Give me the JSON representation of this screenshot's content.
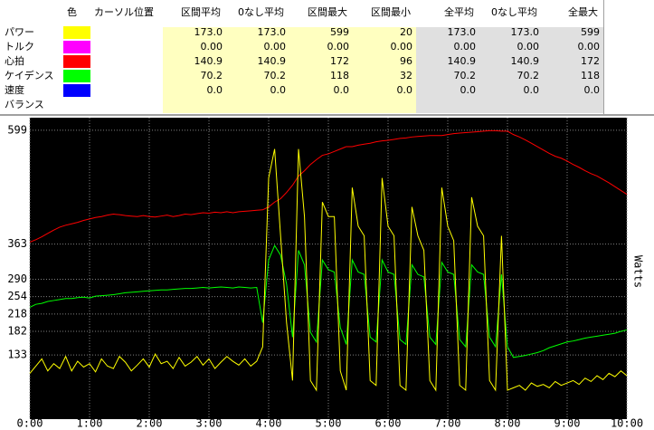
{
  "table": {
    "header": [
      "色",
      "カーソル位置",
      "区間平均",
      "0なし平均",
      "区間最大",
      "区間最小",
      "全平均",
      "0なし平均",
      "全最大"
    ],
    "rows": [
      {
        "label": "パワー",
        "color": "#ffff00",
        "cells": [
          "173.0",
          "173.0",
          "599",
          "20",
          "173.0",
          "173.0",
          "599"
        ]
      },
      {
        "label": "トルク",
        "color": "#ff00ff",
        "cells": [
          "0.00",
          "0.00",
          "0.00",
          "0.00",
          "0.00",
          "0.00",
          "0.00"
        ]
      },
      {
        "label": "心拍",
        "color": "#ff0000",
        "cells": [
          "140.9",
          "140.9",
          "172",
          "96",
          "140.9",
          "140.9",
          "172"
        ]
      },
      {
        "label": "ケイデンス",
        "color": "#00ff00",
        "cells": [
          "70.2",
          "70.2",
          "118",
          "32",
          "70.2",
          "70.2",
          "118"
        ]
      },
      {
        "label": "速度",
        "color": "#0000ff",
        "cells": [
          "0.0",
          "0.0",
          "0.0",
          "0.0",
          "0.0",
          "0.0",
          "0.0"
        ]
      },
      {
        "label": "バランス"
      }
    ]
  },
  "chart_data": {
    "type": "line",
    "ylabel": "Watts",
    "xlim": [
      0,
      10
    ],
    "ylim": [
      0,
      625
    ],
    "grid": true,
    "xticks": [
      {
        "value": 0,
        "label": "0:00"
      },
      {
        "value": 1,
        "label": "1:00"
      },
      {
        "value": 2,
        "label": "2:00"
      },
      {
        "value": 3,
        "label": "3:00"
      },
      {
        "value": 4,
        "label": "4:00"
      },
      {
        "value": 5,
        "label": "5:00"
      },
      {
        "value": 6,
        "label": "6:00"
      },
      {
        "value": 7,
        "label": "7:00"
      },
      {
        "value": 8,
        "label": "8:00"
      },
      {
        "value": 9,
        "label": "9:00"
      },
      {
        "value": 10,
        "label": "10:00"
      }
    ],
    "yticks": [
      133,
      182,
      218,
      254,
      290,
      363,
      599
    ],
    "x": [
      0,
      0.1,
      0.2,
      0.3,
      0.4,
      0.5,
      0.6,
      0.7,
      0.8,
      0.9,
      1,
      1.1,
      1.2,
      1.3,
      1.4,
      1.5,
      1.6,
      1.7,
      1.8,
      1.9,
      2,
      2.1,
      2.2,
      2.3,
      2.4,
      2.5,
      2.6,
      2.7,
      2.8,
      2.9,
      3,
      3.1,
      3.2,
      3.3,
      3.4,
      3.5,
      3.6,
      3.7,
      3.8,
      3.9,
      4,
      4.1,
      4.2,
      4.3,
      4.4,
      4.5,
      4.6,
      4.7,
      4.8,
      4.9,
      5,
      5.1,
      5.2,
      5.3,
      5.4,
      5.5,
      5.6,
      5.7,
      5.8,
      5.9,
      6,
      6.1,
      6.2,
      6.3,
      6.4,
      6.5,
      6.6,
      6.7,
      6.8,
      6.9,
      7,
      7.1,
      7.2,
      7.3,
      7.4,
      7.5,
      7.6,
      7.7,
      7.8,
      7.9,
      8,
      8.1,
      8.2,
      8.3,
      8.4,
      8.5,
      8.6,
      8.7,
      8.8,
      8.9,
      9,
      9.1,
      9.2,
      9.3,
      9.4,
      9.5,
      9.6,
      9.7,
      9.8,
      9.9,
      10
    ],
    "series": [
      {
        "color": "#ff0000",
        "values": [
          367,
          372,
          378,
          385,
          392,
          398,
          402,
          405,
          408,
          412,
          415,
          418,
          420,
          423,
          425,
          424,
          422,
          421,
          420,
          422,
          420,
          419,
          421,
          423,
          420,
          422,
          425,
          424,
          426,
          428,
          427,
          429,
          428,
          430,
          428,
          430,
          431,
          432,
          433,
          434,
          440,
          450,
          457,
          470,
          485,
          504,
          515,
          528,
          538,
          547,
          550,
          555,
          560,
          565,
          565,
          568,
          570,
          572,
          575,
          577,
          578,
          580,
          582,
          583,
          585,
          586,
          587,
          588,
          588,
          588,
          590,
          592,
          593,
          594,
          595,
          596,
          597,
          598,
          598,
          597,
          597,
          590,
          585,
          579,
          572,
          565,
          558,
          551,
          545,
          541,
          535,
          528,
          522,
          515,
          509,
          504,
          497,
          490,
          482,
          474,
          466
        ]
      },
      {
        "color": "#00ff00",
        "values": [
          232,
          238,
          240,
          244,
          246,
          248,
          250,
          250,
          252,
          253,
          251,
          255,
          256,
          257,
          258,
          260,
          262,
          263,
          264,
          265,
          266,
          267,
          268,
          268,
          269,
          270,
          271,
          271,
          272,
          273,
          272,
          273,
          274,
          273,
          272,
          274,
          273,
          272,
          273,
          200,
          330,
          360,
          340,
          280,
          170,
          350,
          320,
          180,
          160,
          330,
          310,
          305,
          190,
          155,
          330,
          305,
          300,
          170,
          160,
          330,
          305,
          300,
          165,
          155,
          320,
          300,
          295,
          170,
          155,
          325,
          305,
          300,
          165,
          150,
          320,
          305,
          300,
          170,
          150,
          300,
          150,
          128,
          130,
          132,
          135,
          138,
          142,
          148,
          152,
          156,
          160,
          162,
          165,
          168,
          170,
          172,
          174,
          176,
          178,
          182,
          185
        ]
      },
      {
        "color": "#ffff00",
        "values": [
          95,
          110,
          125,
          100,
          115,
          105,
          130,
          100,
          120,
          108,
          115,
          98,
          125,
          110,
          105,
          130,
          118,
          100,
          112,
          125,
          108,
          135,
          115,
          120,
          105,
          128,
          110,
          118,
          130,
          112,
          125,
          105,
          118,
          130,
          120,
          112,
          125,
          110,
          120,
          150,
          500,
          560,
          380,
          200,
          80,
          560,
          420,
          80,
          60,
          450,
          420,
          420,
          100,
          60,
          480,
          400,
          380,
          80,
          70,
          500,
          400,
          380,
          70,
          60,
          440,
          380,
          350,
          80,
          60,
          480,
          400,
          370,
          70,
          60,
          460,
          400,
          380,
          80,
          60,
          380,
          60,
          65,
          70,
          60,
          75,
          68,
          72,
          65,
          78,
          70,
          75,
          80,
          72,
          85,
          78,
          90,
          82,
          95,
          88,
          100,
          90
        ]
      }
    ]
  }
}
